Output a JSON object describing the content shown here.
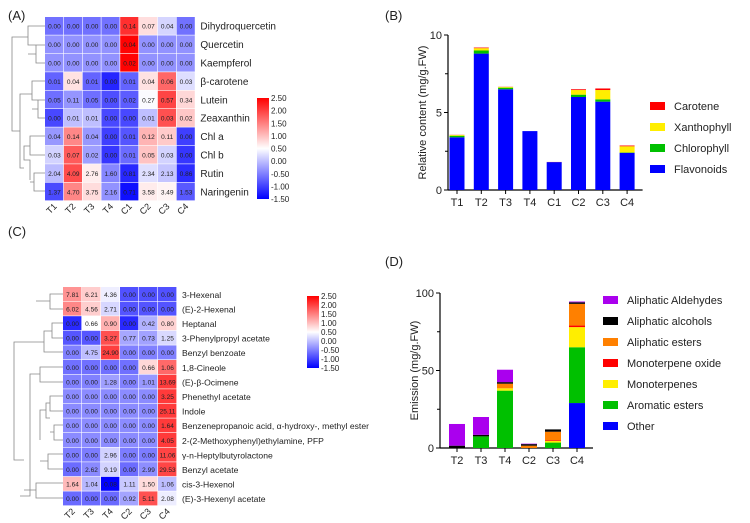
{
  "chart_data": [
    {
      "panel": "(A)",
      "type": "heatmap",
      "columns": [
        "T1",
        "T2",
        "T3",
        "T4",
        "C1",
        "C2",
        "C3",
        "C4"
      ],
      "rows": [
        "Dihydroquercetin",
        "Quercetin",
        "Kaempferol",
        "β-carotene",
        "Lutein",
        "Zeaxanthin",
        "Chl a",
        "Chl b",
        "Rutin",
        "Naringenin"
      ],
      "values": [
        [
          0.0,
          0.0,
          0.0,
          0.0,
          0.14,
          0.07,
          0.04,
          0.0
        ],
        [
          0.0,
          0.0,
          0.0,
          0.0,
          0.04,
          0.0,
          0.0,
          0.0
        ],
        [
          0.0,
          0.0,
          0.0,
          0.0,
          0.02,
          0.0,
          0.0,
          0.0
        ],
        [
          0.01,
          0.04,
          0.01,
          0.0,
          0.01,
          0.04,
          0.06,
          0.03
        ],
        [
          0.05,
          0.11,
          0.05,
          0.0,
          0.02,
          0.27,
          0.57,
          0.34
        ],
        [
          0.0,
          0.01,
          0.01,
          0.0,
          0.0,
          0.01,
          0.03,
          0.02
        ],
        [
          0.04,
          0.14,
          0.04,
          0.0,
          0.01,
          0.12,
          0.11,
          0.0
        ],
        [
          0.03,
          0.07,
          0.02,
          0.0,
          0.01,
          0.05,
          0.03,
          0.0
        ],
        [
          2.04,
          4.09,
          2.76,
          1.6,
          0.81,
          2.34,
          2.13,
          0.86
        ],
        [
          1.37,
          4.7,
          3.75,
          2.16,
          0.71,
          3.58,
          3.49,
          1.53
        ]
      ],
      "colorbar_ticks": [
        "2.50",
        "2.00",
        "1.50",
        "1.00",
        "0.50",
        "0.00",
        "-0.50",
        "-1.00",
        "-1.50"
      ],
      "range": [
        -1.5,
        2.5
      ]
    },
    {
      "panel": "(B)",
      "type": "bar",
      "stacked": true,
      "categories": [
        "T1",
        "T2",
        "T3",
        "T4",
        "C1",
        "C2",
        "C3",
        "C4"
      ],
      "ylabel": "Relative content (mg/g.FW)",
      "ylim": [
        0,
        10
      ],
      "yticks": [
        "0",
        "5",
        "10"
      ],
      "legend": "right",
      "series": [
        {
          "name": "Flavonoids",
          "color": "#0000ff",
          "values": [
            3.4,
            8.8,
            6.5,
            3.8,
            1.8,
            6.0,
            5.7,
            2.4
          ]
        },
        {
          "name": "Chlorophyll",
          "color": "#00c000",
          "values": [
            0.1,
            0.2,
            0.1,
            0,
            0,
            0.15,
            0.15,
            0.02
          ]
        },
        {
          "name": "Xanthophyll",
          "color": "#ffee00",
          "values": [
            0.05,
            0.15,
            0.05,
            0,
            0,
            0.3,
            0.6,
            0.4
          ]
        },
        {
          "name": "Carotene",
          "color": "#ff0000",
          "values": [
            0.01,
            0.04,
            0.01,
            0,
            0.01,
            0.05,
            0.1,
            0.05
          ]
        }
      ]
    },
    {
      "panel": "(C)",
      "type": "heatmap",
      "columns": [
        "T2",
        "T3",
        "T4",
        "C2",
        "C3",
        "C4"
      ],
      "rows": [
        "3-Hexenal",
        "(E)-2-Hexenal",
        "Heptanal",
        "3-Phenylpropyl acetate",
        "Benzyl benzoate",
        "1,8-Cineole",
        "(E)-β-Ocimene",
        "Phenethyl acetate",
        "Indole",
        "Benzenepropanoic acid, α-hydroxy-, methyl ester",
        "2-(2-Methoxyphenyl)ethylamine, PFP",
        "γ-n-Heptylbutyrolactone",
        "Benzyl acetate",
        "cis-3-Hexenol",
        "(E)-3-Hexenyl acetate"
      ],
      "values": [
        [
          7.81,
          6.21,
          4.36,
          0.0,
          0.0,
          0.0
        ],
        [
          6.02,
          4.56,
          2.71,
          0.0,
          0.0,
          0.0
        ],
        [
          0.0,
          0.66,
          0.9,
          0.0,
          0.42,
          0.8
        ],
        [
          0.0,
          0.0,
          3.27,
          0.77,
          0.73,
          1.25
        ],
        [
          0.0,
          4.75,
          24.9,
          0.0,
          0.0,
          0.0
        ],
        [
          0.0,
          0.0,
          0.0,
          0.0,
          0.66,
          1.06
        ],
        [
          0.0,
          0.0,
          1.28,
          0.0,
          1.01,
          13.69
        ],
        [
          0.0,
          0.0,
          0.0,
          0.0,
          0.0,
          3.25
        ],
        [
          0.0,
          0.0,
          0.0,
          0.0,
          0.0,
          25.11
        ],
        [
          0.0,
          0.0,
          0.0,
          0.0,
          0.0,
          1.64
        ],
        [
          0.0,
          0.0,
          0.0,
          0.0,
          0.0,
          4.05
        ],
        [
          0.0,
          0.0,
          2.96,
          0.0,
          0.0,
          11.06
        ],
        [
          0.0,
          2.62,
          9.19,
          0.0,
          2.99,
          29.53
        ],
        [
          1.64,
          1.04,
          0.08,
          1.11,
          1.5,
          1.06
        ],
        [
          0.0,
          0.0,
          0.0,
          0.92,
          5.11,
          2.08
        ]
      ],
      "colorbar_ticks": [
        "2.50",
        "2.00",
        "1.50",
        "1.00",
        "0.50",
        "0.00",
        "-0.50",
        "-1.00",
        "-1.50"
      ],
      "range": [
        -1.5,
        2.5
      ]
    },
    {
      "panel": "(D)",
      "type": "bar",
      "stacked": true,
      "categories": [
        "T2",
        "T3",
        "T4",
        "C2",
        "C3",
        "C4"
      ],
      "ylabel": "Emission (mg/g.FW)",
      "ylim": [
        0,
        100
      ],
      "yticks": [
        "0",
        "50",
        "100"
      ],
      "legend": "right",
      "series": [
        {
          "name": "Other",
          "color": "#0000ff",
          "values": [
            0,
            0,
            0,
            0,
            0,
            29
          ]
        },
        {
          "name": "Aromatic esters",
          "color": "#00c000",
          "values": [
            0,
            7.5,
            37,
            0,
            3.5,
            36
          ]
        },
        {
          "name": "Monoterpenes",
          "color": "#ffee00",
          "values": [
            0,
            0,
            1.5,
            0,
            1,
            13
          ]
        },
        {
          "name": "Monoterpene oxide",
          "color": "#ff0000",
          "values": [
            0,
            0,
            0,
            0,
            0.5,
            1
          ]
        },
        {
          "name": "Aliphatic esters",
          "color": "#ff8000",
          "values": [
            0,
            0,
            3,
            1.5,
            5.5,
            14
          ]
        },
        {
          "name": "Aliphatic alcohols",
          "color": "#000000",
          "values": [
            1.5,
            1,
            1,
            1,
            1.5,
            1
          ]
        },
        {
          "name": "Aliphatic Aldehydes",
          "color": "#aa00ee",
          "values": [
            14,
            11.5,
            8,
            0.3,
            0,
            0.5
          ]
        }
      ]
    }
  ]
}
